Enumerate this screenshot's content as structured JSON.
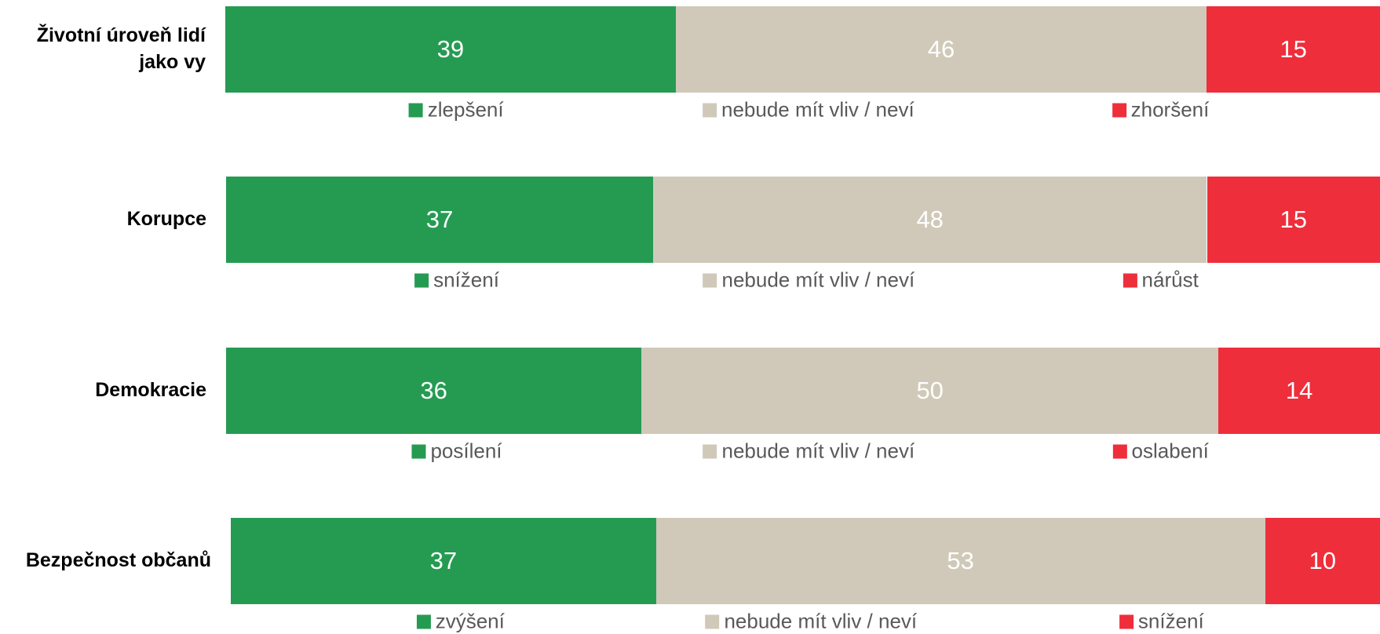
{
  "chart_data": [
    {
      "type": "bar",
      "stacked": true,
      "orientation": "horizontal",
      "categories": [
        "Životní úroveň lidí jako vy"
      ],
      "xlim": [
        0,
        100
      ],
      "series": [
        {
          "name": "zlepšení",
          "color": "#259b52",
          "values": [
            39
          ]
        },
        {
          "name": "nebude mít vliv / neví",
          "color": "#d0c9b9",
          "values": [
            46
          ]
        },
        {
          "name": "zhoršení",
          "color": "#ee2e3b",
          "values": [
            15
          ]
        }
      ]
    },
    {
      "type": "bar",
      "stacked": true,
      "orientation": "horizontal",
      "categories": [
        "Korupce"
      ],
      "xlim": [
        0,
        100
      ],
      "series": [
        {
          "name": "snížení",
          "color": "#259b52",
          "values": [
            37
          ]
        },
        {
          "name": "nebude mít vliv / neví",
          "color": "#d0c9b9",
          "values": [
            48
          ]
        },
        {
          "name": "nárůst",
          "color": "#ee2e3b",
          "values": [
            15
          ]
        }
      ]
    },
    {
      "type": "bar",
      "stacked": true,
      "orientation": "horizontal",
      "categories": [
        "Demokracie"
      ],
      "xlim": [
        0,
        100
      ],
      "series": [
        {
          "name": "posílení",
          "color": "#259b52",
          "values": [
            36
          ]
        },
        {
          "name": "nebude mít vliv / neví",
          "color": "#d0c9b9",
          "values": [
            50
          ]
        },
        {
          "name": "oslabení",
          "color": "#ee2e3b",
          "values": [
            14
          ]
        }
      ]
    },
    {
      "type": "bar",
      "stacked": true,
      "orientation": "horizontal",
      "categories": [
        "Bezpečnost občanů"
      ],
      "xlim": [
        0,
        100
      ],
      "series": [
        {
          "name": "zvýšení",
          "color": "#259b52",
          "values": [
            37
          ]
        },
        {
          "name": "nebude mít vliv / neví",
          "color": "#d0c9b9",
          "values": [
            53
          ]
        },
        {
          "name": "snížení",
          "color": "#ee2e3b",
          "values": [
            10
          ]
        }
      ]
    }
  ]
}
